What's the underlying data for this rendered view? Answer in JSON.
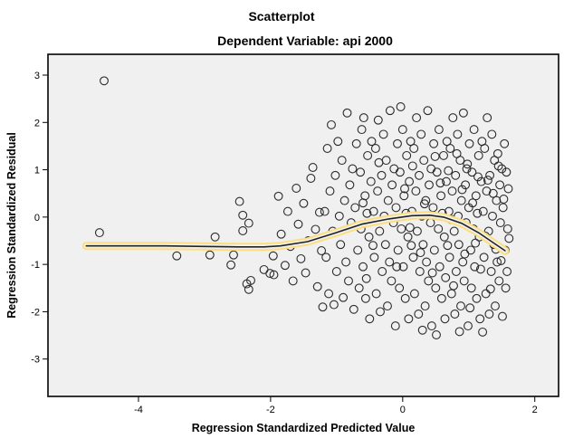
{
  "chart": {
    "title": "Scatterplot",
    "subtitle": "Dependent Variable: api 2000",
    "xlabel": "Regression Standardized Predicted Value",
    "ylabel": "Regression Standardized Residual"
  },
  "chart_data": {
    "type": "scatter",
    "title": "Scatterplot",
    "subtitle": "Dependent Variable: api 2000",
    "xlabel": "Regression Standardized Predicted Value",
    "ylabel": "Regression Standardized Residual",
    "x_ticks": [
      -4,
      -2,
      0,
      2
    ],
    "y_ticks": [
      3,
      2,
      1,
      0,
      -1,
      -2,
      -3
    ],
    "xlim": [
      -5.37,
      2.36
    ],
    "ylim": [
      -3.79,
      3.44
    ],
    "grid": false,
    "legend": null,
    "marker": "open-circle",
    "marker_radius": 4.4,
    "colors": {
      "plot_bg": "#f0f0f0",
      "frame": "#111111",
      "marker": "#2b2b2b",
      "fit_line": "#222222",
      "fit_halo": "#fbdf7f"
    },
    "lowess": [
      [
        -4.79,
        -0.61
      ],
      [
        -4.2,
        -0.61
      ],
      [
        -3.6,
        -0.61
      ],
      [
        -3.0,
        -0.62
      ],
      [
        -2.5,
        -0.63
      ],
      [
        -2.1,
        -0.63
      ],
      [
        -1.85,
        -0.61
      ],
      [
        -1.44,
        -0.52
      ],
      [
        -1.03,
        -0.34
      ],
      [
        -0.62,
        -0.15
      ],
      [
        -0.21,
        -0.04
      ],
      [
        0.14,
        0.03
      ],
      [
        0.41,
        0.04
      ],
      [
        0.62,
        0.0
      ],
      [
        0.89,
        -0.13
      ],
      [
        1.16,
        -0.34
      ],
      [
        1.37,
        -0.54
      ],
      [
        1.55,
        -0.71
      ]
    ],
    "points": [
      [
        -4.52,
        2.88
      ],
      [
        -4.59,
        -0.33
      ],
      [
        -3.42,
        -0.82
      ],
      [
        -2.92,
        -0.8
      ],
      [
        -2.84,
        -0.42
      ],
      [
        -2.6,
        -1.01
      ],
      [
        -2.56,
        -0.8
      ],
      [
        -2.47,
        0.33
      ],
      [
        -2.42,
        0.04
      ],
      [
        -2.42,
        -0.29
      ],
      [
        -2.36,
        -1.41
      ],
      [
        -2.33,
        -0.13
      ],
      [
        -2.33,
        -1.53
      ],
      [
        -2.3,
        -1.34
      ],
      [
        -2.1,
        -1.11
      ],
      [
        -2.01,
        -1.19
      ],
      [
        -1.96,
        -0.82
      ],
      [
        -1.95,
        -1.22
      ],
      [
        -1.88,
        0.44
      ],
      [
        -1.84,
        -0.36
      ],
      [
        -1.78,
        -1.02
      ],
      [
        -1.74,
        0.12
      ],
      [
        -1.7,
        -0.62
      ],
      [
        -1.66,
        -1.35
      ],
      [
        -1.61,
        0.61
      ],
      [
        -1.58,
        -0.15
      ],
      [
        -1.54,
        -0.88
      ],
      [
        -1.5,
        0.29
      ],
      [
        -1.47,
        -1.18
      ],
      [
        -1.43,
        -0.5
      ],
      [
        -1.39,
        0.82
      ],
      [
        -1.36,
        1.05
      ],
      [
        -1.32,
        -0.26
      ],
      [
        -1.29,
        -1.47
      ],
      [
        -1.26,
        0.1
      ],
      [
        -1.23,
        -0.71
      ],
      [
        -1.21,
        -1.9
      ],
      [
        -1.18,
        0.12
      ],
      [
        -1.16,
        -0.85
      ],
      [
        -1.14,
        1.45
      ],
      [
        -1.12,
        -1.62
      ],
      [
        -1.1,
        0.55
      ],
      [
        -1.08,
        1.95
      ],
      [
        -1.06,
        -0.3
      ],
      [
        -1.04,
        -1.85
      ],
      [
        -1.02,
        0.88
      ],
      [
        -1.0,
        -1.15
      ],
      [
        -0.98,
        1.6
      ],
      [
        -0.96,
        0.02
      ],
      [
        -0.94,
        -0.58
      ],
      [
        -0.92,
        1.2
      ],
      [
        -0.9,
        -1.7
      ],
      [
        -0.88,
        0.35
      ],
      [
        -0.86,
        -0.95
      ],
      [
        -0.84,
        2.2
      ],
      [
        -0.82,
        -1.35
      ],
      [
        -0.8,
        0.68
      ],
      [
        -0.78,
        -0.12
      ],
      [
        -0.76,
        1.02
      ],
      [
        -0.74,
        -1.95
      ],
      [
        -0.72,
        0.2
      ],
      [
        -0.7,
        1.55
      ],
      [
        -0.68,
        -0.7
      ],
      [
        -0.66,
        -1.5
      ],
      [
        -0.64,
        0.95
      ],
      [
        -0.63,
        -0.25
      ],
      [
        -0.62,
        1.85
      ],
      [
        -0.6,
        -1.05
      ],
      [
        -0.59,
        2.1
      ],
      [
        -0.57,
        0.45
      ],
      [
        -0.56,
        -1.72
      ],
      [
        -0.54,
        0.08
      ],
      [
        -0.53,
        1.3
      ],
      [
        -0.51,
        -0.42
      ],
      [
        -0.5,
        -2.15
      ],
      [
        -0.48,
        0.75
      ],
      [
        -0.47,
        1.6
      ],
      [
        -0.45,
        -0.6
      ],
      [
        -0.44,
        0.12
      ],
      [
        -0.43,
        -0.85
      ],
      [
        -0.41,
        1.45
      ],
      [
        -0.4,
        -1.62
      ],
      [
        -0.38,
        0.55
      ],
      [
        -0.37,
        2.05
      ],
      [
        -0.35,
        -0.3
      ],
      [
        -0.34,
        -2.0
      ],
      [
        -0.32,
        0.88
      ],
      [
        -0.31,
        -1.15
      ],
      [
        -0.29,
        1.75
      ],
      [
        -0.28,
        0.02
      ],
      [
        -0.26,
        -0.58
      ],
      [
        -0.25,
        1.2
      ],
      [
        -0.23,
        -1.88
      ],
      [
        -0.22,
        0.35
      ],
      [
        -0.2,
        -0.95
      ],
      [
        -0.19,
        2.25
      ],
      [
        -0.17,
        -1.35
      ],
      [
        -0.16,
        0.68
      ],
      [
        -0.14,
        -0.12
      ],
      [
        -0.13,
        1.02
      ],
      [
        -0.11,
        -2.3
      ],
      [
        -0.1,
        0.2
      ],
      [
        -0.08,
        1.55
      ],
      [
        -0.07,
        -0.7
      ],
      [
        -0.05,
        -1.5
      ],
      [
        -0.04,
        0.95
      ],
      [
        -0.03,
        2.33
      ],
      [
        -0.02,
        -0.25
      ],
      [
        -0.6,
        0.3
      ],
      [
        -0.55,
        -1.3
      ],
      [
        -0.36,
        1.15
      ],
      [
        -0.09,
        -1.05
      ],
      [
        0.0,
        1.85
      ],
      [
        0.01,
        -1.05
      ],
      [
        0.02,
        0.45
      ],
      [
        0.04,
        -1.72
      ],
      [
        0.05,
        0.08
      ],
      [
        0.06,
        1.3
      ],
      [
        0.08,
        -0.42
      ],
      [
        0.09,
        -2.15
      ],
      [
        0.1,
        0.75
      ],
      [
        0.12,
        1.6
      ],
      [
        0.13,
        -0.6
      ],
      [
        0.14,
        0.12
      ],
      [
        0.16,
        -0.85
      ],
      [
        0.17,
        1.45
      ],
      [
        0.18,
        -1.62
      ],
      [
        0.2,
        0.55
      ],
      [
        0.21,
        2.1
      ],
      [
        0.22,
        -0.3
      ],
      [
        0.24,
        -2.05
      ],
      [
        0.25,
        0.88
      ],
      [
        0.26,
        -1.15
      ],
      [
        0.28,
        1.75
      ],
      [
        0.29,
        0.02
      ],
      [
        0.3,
        -2.39
      ],
      [
        0.31,
        -0.58
      ],
      [
        0.32,
        1.2
      ],
      [
        0.34,
        -1.88
      ],
      [
        0.35,
        0.35
      ],
      [
        0.36,
        -0.95
      ],
      [
        0.38,
        2.25
      ],
      [
        0.39,
        -1.35
      ],
      [
        0.4,
        0.68
      ],
      [
        0.42,
        -0.12
      ],
      [
        0.43,
        1.02
      ],
      [
        0.44,
        -2.3
      ],
      [
        0.46,
        0.2
      ],
      [
        0.47,
        1.55
      ],
      [
        0.48,
        -0.7
      ],
      [
        0.5,
        -1.5
      ],
      [
        0.51,
        -2.49
      ],
      [
        0.52,
        0.95
      ],
      [
        0.54,
        -0.25
      ],
      [
        0.55,
        1.85
      ],
      [
        0.56,
        -1.05
      ],
      [
        0.58,
        0.45
      ],
      [
        0.59,
        -1.72
      ],
      [
        0.6,
        0.08
      ],
      [
        0.03,
        0.6
      ],
      [
        0.15,
        1.08
      ],
      [
        0.27,
        -0.75
      ],
      [
        0.33,
        0.28
      ],
      [
        0.45,
        -1.18
      ],
      [
        0.57,
        0.72
      ],
      [
        0.49,
        1.28
      ],
      [
        0.11,
        -0.22
      ],
      [
        0.62,
        1.3
      ],
      [
        0.63,
        -0.42
      ],
      [
        0.64,
        -2.15
      ],
      [
        0.66,
        0.75
      ],
      [
        0.67,
        1.6
      ],
      [
        0.68,
        -0.6
      ],
      [
        0.7,
        0.12
      ],
      [
        0.71,
        -0.85
      ],
      [
        0.72,
        1.45
      ],
      [
        0.74,
        -1.62
      ],
      [
        0.75,
        0.55
      ],
      [
        0.76,
        2.1
      ],
      [
        0.78,
        -0.3
      ],
      [
        0.79,
        -2.05
      ],
      [
        0.8,
        0.88
      ],
      [
        0.81,
        -1.15
      ],
      [
        0.83,
        1.75
      ],
      [
        0.84,
        0.02
      ],
      [
        0.85,
        -0.58
      ],
      [
        0.87,
        1.2
      ],
      [
        0.88,
        -1.88
      ],
      [
        0.89,
        0.35
      ],
      [
        0.91,
        -0.95
      ],
      [
        0.92,
        2.2
      ],
      [
        0.93,
        -1.35
      ],
      [
        0.95,
        0.68
      ],
      [
        0.96,
        -0.12
      ],
      [
        0.97,
        1.02
      ],
      [
        0.99,
        -2.3
      ],
      [
        1.0,
        0.2
      ],
      [
        1.01,
        1.55
      ],
      [
        1.03,
        -0.7
      ],
      [
        1.04,
        -1.5
      ],
      [
        1.05,
        0.95
      ],
      [
        1.07,
        -0.25
      ],
      [
        1.08,
        1.85
      ],
      [
        1.09,
        -1.05
      ],
      [
        1.11,
        0.45
      ],
      [
        1.12,
        -1.72
      ],
      [
        1.13,
        0.08
      ],
      [
        1.15,
        1.3
      ],
      [
        1.16,
        -0.42
      ],
      [
        1.17,
        -2.15
      ],
      [
        1.19,
        0.75
      ],
      [
        1.2,
        1.6
      ],
      [
        0.65,
        -1.28
      ],
      [
        0.69,
        0.98
      ],
      [
        0.73,
        -0.05
      ],
      [
        0.77,
        -1.45
      ],
      [
        0.82,
        1.34
      ],
      [
        0.86,
        -2.42
      ],
      [
        0.9,
        0.58
      ],
      [
        0.94,
        -0.78
      ],
      [
        0.98,
        1.12
      ],
      [
        1.02,
        -1.92
      ],
      [
        1.06,
        0.3
      ],
      [
        1.1,
        -0.55
      ],
      [
        1.14,
        0.85
      ],
      [
        1.18,
        -1.1
      ],
      [
        1.21,
        -2.43
      ],
      [
        1.22,
        0.12
      ],
      [
        1.23,
        -0.85
      ],
      [
        1.24,
        1.45
      ],
      [
        1.26,
        -1.62
      ],
      [
        1.27,
        0.55
      ],
      [
        1.28,
        2.1
      ],
      [
        1.3,
        -0.3
      ],
      [
        1.31,
        -2.05
      ],
      [
        1.32,
        0.88
      ],
      [
        1.34,
        -1.15
      ],
      [
        1.35,
        1.75
      ],
      [
        1.36,
        0.02
      ],
      [
        1.38,
        -0.58
      ],
      [
        1.39,
        1.2
      ],
      [
        1.4,
        -1.88
      ],
      [
        1.42,
        0.35
      ],
      [
        1.43,
        -0.95
      ],
      [
        1.44,
        1.34
      ],
      [
        1.46,
        -1.35
      ],
      [
        1.47,
        0.68
      ],
      [
        1.48,
        -0.12
      ],
      [
        1.5,
        1.02
      ],
      [
        1.51,
        -2.1
      ],
      [
        1.52,
        0.2
      ],
      [
        1.54,
        1.55
      ],
      [
        1.55,
        -0.7
      ],
      [
        1.56,
        -1.5
      ],
      [
        1.57,
        0.95
      ],
      [
        1.59,
        -0.25
      ],
      [
        1.6,
        0.6
      ],
      [
        1.25,
        -0.4
      ],
      [
        1.29,
        0.78
      ],
      [
        1.33,
        -1.52
      ],
      [
        1.37,
        0.5
      ],
      [
        1.41,
        -0.68
      ],
      [
        1.45,
        1.08
      ],
      [
        1.49,
        -0.92
      ],
      [
        1.53,
        0.38
      ],
      [
        1.58,
        -1.15
      ],
      [
        1.61,
        -0.45
      ]
    ]
  }
}
